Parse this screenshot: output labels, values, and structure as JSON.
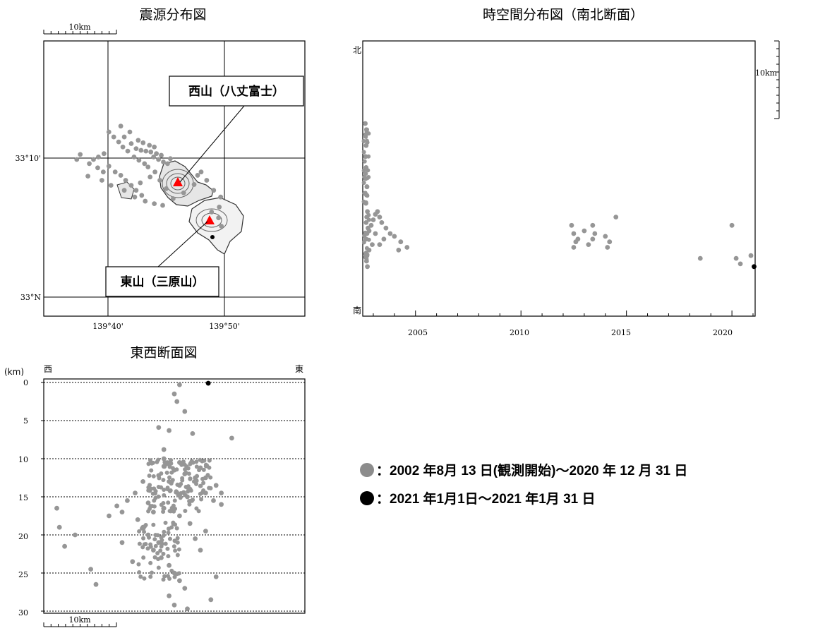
{
  "titles": {
    "epicenter": "震源分布図",
    "spacetime": "時空間分布図（南北断面）",
    "ew_section": "東西断面図"
  },
  "scale_label": "10km",
  "callouts": {
    "nishiyama": "西山（八丈富士）",
    "higashiyama": "東山（三原山）"
  },
  "direction_labels": {
    "north": "北",
    "south": "南",
    "west": "西",
    "east": "東"
  },
  "depth_unit": "(km)",
  "legend": [
    {
      "color": "#8c8c8c",
      "text": "：2002 年8月 13 日(観測開始)～2020 年 12 月 31 日"
    },
    {
      "color": "#000000",
      "text": "：2021 年1月1日～2021 年1月 31 日"
    }
  ],
  "colors": {
    "old_events": "#969696",
    "new_events": "#000000",
    "volcano": "#ff0000",
    "frame": "#000000"
  },
  "chart_data": [
    {
      "type": "scatter",
      "title": "震源分布図",
      "xlabel": "",
      "ylabel": "",
      "x_ticks": [
        "139°40'",
        "139°50'"
      ],
      "y_ticks": [
        "33°10'",
        "33°N"
      ],
      "xlim": [
        139.6,
        139.917
      ],
      "ylim": [
        32.985,
        33.317
      ],
      "series": [
        {
          "name": "",
          "color": "#969696",
          "points": [
            [
              139.707,
              33.178
            ],
            [
              139.714,
              33.176
            ],
            [
              139.721,
              33.175
            ],
            [
              139.728,
              33.174
            ],
            [
              139.736,
              33.172
            ],
            [
              139.743,
              33.17
            ],
            [
              139.7,
              33.184
            ],
            [
              139.71,
              33.188
            ],
            [
              139.69,
              33.192
            ],
            [
              139.698,
              33.198
            ],
            [
              139.685,
              33.205
            ],
            [
              139.717,
              33.185
            ],
            [
              139.726,
              33.182
            ],
            [
              139.733,
              33.18
            ],
            [
              139.704,
              33.168
            ],
            [
              139.711,
              33.164
            ],
            [
              139.719,
              33.16
            ],
            [
              139.724,
              33.156
            ],
            [
              139.746,
              33.162
            ],
            [
              139.752,
              33.16
            ],
            [
              139.756,
              33.166
            ],
            [
              139.732,
              33.168
            ],
            [
              139.739,
              33.165
            ],
            [
              139.695,
              33.175
            ],
            [
              139.688,
              33.18
            ],
            [
              139.682,
              33.186
            ],
            [
              139.675,
              33.192
            ],
            [
              139.668,
              33.198
            ],
            [
              139.661,
              33.172
            ],
            [
              139.653,
              33.168
            ],
            [
              139.646,
              33.165
            ],
            [
              139.627,
              33.171
            ],
            [
              139.622,
              33.165
            ],
            [
              139.64,
              33.16
            ],
            [
              139.652,
              33.155
            ],
            [
              139.66,
              33.15
            ],
            [
              139.668,
              33.157
            ],
            [
              139.677,
              33.15
            ],
            [
              139.685,
              33.146
            ],
            [
              139.692,
              33.14
            ],
            [
              139.7,
              33.134
            ],
            [
              139.707,
              33.128
            ],
            [
              139.715,
              33.122
            ],
            [
              139.72,
              33.115
            ],
            [
              139.733,
              33.112
            ],
            [
              139.745,
              33.11
            ],
            [
              139.76,
              33.118
            ],
            [
              139.775,
              33.125
            ],
            [
              139.79,
              33.135
            ],
            [
              139.795,
              33.146
            ],
            [
              139.8,
              33.15
            ],
            [
              139.808,
              33.14
            ],
            [
              139.818,
              33.128
            ],
            [
              139.828,
              33.12
            ],
            [
              139.826,
              33.108
            ],
            [
              139.815,
              33.102
            ],
            [
              139.825,
              33.095
            ],
            [
              139.829,
              33.085
            ],
            [
              139.713,
              33.137
            ],
            [
              139.727,
              33.144
            ],
            [
              139.734,
              33.15
            ],
            [
              139.741,
              33.14
            ],
            [
              139.75,
              33.13
            ],
            [
              139.638,
              33.145
            ],
            [
              139.658,
              33.14
            ],
            [
              139.671,
              33.134
            ],
            [
              139.69,
              33.128
            ],
            [
              139.705,
              33.12
            ]
          ]
        }
      ]
    },
    {
      "type": "scatter",
      "title": "時空間分布図（南北断面）",
      "xlabel": "",
      "ylabel": "",
      "x_ticks": [
        "2005",
        "2010",
        "2015",
        "2020"
      ],
      "xlim": [
        2002.5,
        2021.1
      ],
      "y_ticks": [
        "北",
        "南"
      ],
      "series": [
        {
          "name": "",
          "color": "#969696",
          "points": [
            [
              2002.62,
              0.7
            ],
            [
              2002.64,
              0.66
            ],
            [
              2002.66,
              0.62
            ],
            [
              2002.63,
              0.58
            ],
            [
              2002.66,
              0.54
            ],
            [
              2002.64,
              0.5
            ],
            [
              2002.7,
              0.47
            ],
            [
              2002.68,
              0.44
            ],
            [
              2002.65,
              0.41
            ],
            [
              2002.72,
              0.38
            ],
            [
              2002.69,
              0.36
            ],
            [
              2002.66,
              0.34
            ],
            [
              2002.75,
              0.32
            ],
            [
              2002.7,
              0.3
            ],
            [
              2002.66,
              0.28
            ],
            [
              2002.8,
              0.31
            ],
            [
              2002.9,
              0.33
            ],
            [
              2003.0,
              0.35
            ],
            [
              2003.1,
              0.37
            ],
            [
              2003.2,
              0.38
            ],
            [
              2003.3,
              0.36
            ],
            [
              2003.4,
              0.34
            ],
            [
              2003.6,
              0.32
            ],
            [
              2003.8,
              0.3
            ],
            [
              2004.0,
              0.29
            ],
            [
              2004.3,
              0.27
            ],
            [
              2004.6,
              0.25
            ],
            [
              2004.2,
              0.24
            ],
            [
              2003.5,
              0.28
            ],
            [
              2003.3,
              0.26
            ],
            [
              2003.1,
              0.3
            ],
            [
              2002.95,
              0.26
            ],
            [
              2002.8,
              0.24
            ],
            [
              2002.7,
              0.22
            ],
            [
              2002.68,
              0.2
            ],
            [
              2002.72,
              0.18
            ],
            [
              2012.4,
              0.33
            ],
            [
              2012.5,
              0.3
            ],
            [
              2012.6,
              0.27
            ],
            [
              2012.5,
              0.25
            ],
            [
              2012.7,
              0.28
            ],
            [
              2013.0,
              0.31
            ],
            [
              2013.2,
              0.26
            ],
            [
              2013.4,
              0.33
            ],
            [
              2013.5,
              0.3
            ],
            [
              2013.4,
              0.28
            ],
            [
              2014.0,
              0.29
            ],
            [
              2014.2,
              0.27
            ],
            [
              2014.1,
              0.25
            ],
            [
              2014.5,
              0.36
            ],
            [
              2018.5,
              0.21
            ],
            [
              2020.0,
              0.33
            ],
            [
              2020.2,
              0.21
            ],
            [
              2020.4,
              0.19
            ],
            [
              2020.9,
              0.22
            ]
          ]
        },
        {
          "name": "",
          "color": "#000000",
          "points": [
            [
              2021.05,
              0.18
            ]
          ]
        }
      ]
    },
    {
      "type": "scatter",
      "title": "東西断面図",
      "xlabel": "",
      "ylabel": "(km)",
      "y_ticks": [
        "0",
        "5",
        "10",
        "15",
        "20",
        "25",
        "30"
      ],
      "ylim": [
        0,
        30
      ],
      "series": [
        {
          "name": "",
          "color": "#969696",
          "points": [
            [
              0.52,
              0.3
            ],
            [
              0.5,
              1.5
            ],
            [
              0.51,
              2.5
            ],
            [
              0.54,
              3.8
            ],
            [
              0.44,
              5.9
            ],
            [
              0.48,
              6.3
            ],
            [
              0.57,
              6.7
            ],
            [
              0.72,
              7.3
            ],
            [
              0.46,
              10.0
            ],
            [
              0.52,
              10.5
            ],
            [
              0.46,
              11.0
            ],
            [
              0.5,
              11.5
            ],
            [
              0.54,
              12.0
            ],
            [
              0.58,
              12.5
            ],
            [
              0.48,
              13.0
            ],
            [
              0.52,
              13.5
            ],
            [
              0.56,
              14.0
            ],
            [
              0.44,
              12.2
            ],
            [
              0.6,
              11.2
            ],
            [
              0.38,
              13.0
            ],
            [
              0.35,
              14.5
            ],
            [
              0.32,
              15.5
            ],
            [
              0.28,
              16.2
            ],
            [
              0.3,
              17.0
            ],
            [
              0.25,
              17.5
            ],
            [
              0.62,
              14.5
            ],
            [
              0.65,
              15.5
            ],
            [
              0.68,
              16.0
            ],
            [
              0.4,
              15.8
            ],
            [
              0.42,
              17.0
            ],
            [
              0.36,
              18.0
            ],
            [
              0.38,
              19.0
            ],
            [
              0.4,
              20.0
            ],
            [
              0.44,
              21.0
            ],
            [
              0.42,
              22.0
            ],
            [
              0.45,
              23.0
            ],
            [
              0.48,
              24.0
            ],
            [
              0.5,
              25.0
            ],
            [
              0.52,
              26.0
            ],
            [
              0.54,
              27.0
            ],
            [
              0.48,
              28.0
            ],
            [
              0.5,
              29.2
            ],
            [
              0.55,
              29.7
            ],
            [
              0.05,
              16.5
            ],
            [
              0.06,
              19.0
            ],
            [
              0.08,
              21.5
            ],
            [
              0.12,
              20.0
            ],
            [
              0.18,
              24.5
            ],
            [
              0.2,
              26.5
            ],
            [
              0.6,
              22.0
            ],
            [
              0.58,
              20.5
            ],
            [
              0.56,
              18.5
            ],
            [
              0.62,
              19.5
            ],
            [
              0.66,
              25.5
            ],
            [
              0.64,
              28.5
            ],
            [
              0.3,
              21.0
            ],
            [
              0.34,
              23.5
            ],
            [
              0.46,
              16.5
            ],
            [
              0.52,
              17.5
            ],
            [
              0.55,
              15.0
            ],
            [
              0.62,
              12.5
            ],
            [
              0.66,
              13.5
            ],
            [
              0.68,
              14.5
            ],
            [
              0.46,
              8.8
            ]
          ]
        },
        {
          "name": "",
          "color": "#000000",
          "points": [
            [
              0.63,
              0.1
            ]
          ]
        }
      ]
    }
  ]
}
